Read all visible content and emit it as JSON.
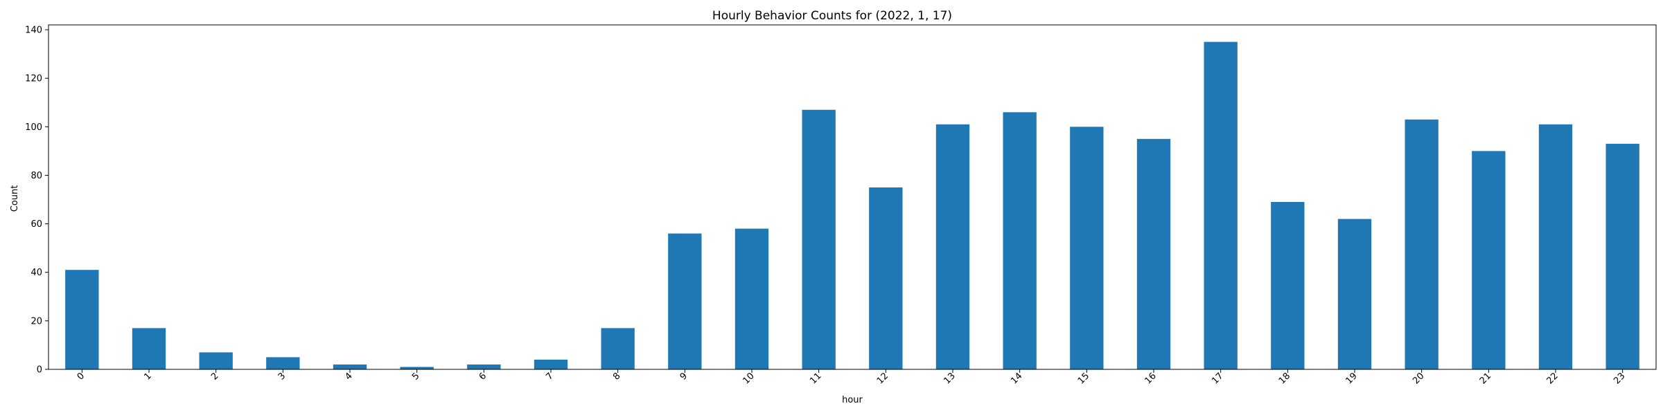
{
  "chart_data": {
    "type": "bar",
    "title": "Hourly Behavior Counts for (2022, 1, 17)",
    "xlabel": "hour",
    "ylabel": "Count",
    "categories": [
      "0",
      "1",
      "2",
      "3",
      "4",
      "5",
      "6",
      "7",
      "8",
      "9",
      "10",
      "11",
      "12",
      "13",
      "14",
      "15",
      "16",
      "17",
      "18",
      "19",
      "20",
      "21",
      "22",
      "23"
    ],
    "values": [
      41,
      17,
      7,
      5,
      2,
      1,
      2,
      4,
      17,
      56,
      58,
      107,
      75,
      101,
      106,
      100,
      95,
      135,
      69,
      62,
      103,
      90,
      101,
      93
    ],
    "ylim": [
      0,
      142
    ],
    "yticks": [
      0,
      20,
      40,
      60,
      80,
      100,
      120,
      140
    ],
    "grid": false,
    "legend": "none",
    "bar_color": "#1f77b4"
  }
}
